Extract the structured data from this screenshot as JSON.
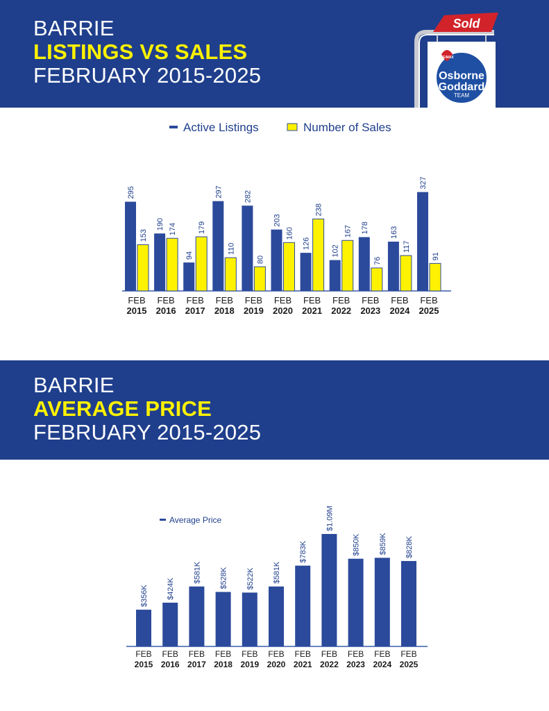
{
  "header1": {
    "line1": "BARRIE",
    "line2": "LISTINGS VS SALES",
    "line3": "FEBRUARY 2015-2025"
  },
  "header2": {
    "line1": "BARRIE",
    "line2": "AVERAGE PRICE",
    "line3": "FEBRUARY 2015-2025"
  },
  "logo": {
    "sold_text": "Sold",
    "remax_text": "RE/MAX",
    "line1": "Osborne",
    "line2": "Goddard",
    "line3": "TEAM"
  },
  "colors": {
    "navy": "#1f3f8c",
    "bar_blue": "#2b4a9b",
    "bar_yellow": "#fff200",
    "highlight": "#fff200",
    "sold_red": "#d2232a"
  },
  "chart_data": [
    {
      "type": "bar",
      "categories": [
        "FEB 2015",
        "FEB 2016",
        "FEB 2017",
        "FEB 2018",
        "FEB 2019",
        "FEB 2020",
        "FEB 2021",
        "FEB 2022",
        "FEB 2023",
        "FEB 2024",
        "FEB 2025"
      ],
      "tick_top": [
        "FEB",
        "FEB",
        "FEB",
        "FEB",
        "FEB",
        "FEB",
        "FEB",
        "FEB",
        "FEB",
        "FEB",
        "FEB"
      ],
      "tick_bottom": [
        "2015",
        "2016",
        "2017",
        "2018",
        "2019",
        "2020",
        "2021",
        "2022",
        "2023",
        "2024",
        "2025"
      ],
      "series": [
        {
          "name": "Active Listings",
          "color": "#2b4a9b",
          "values": [
            295,
            190,
            94,
            297,
            282,
            203,
            126,
            102,
            178,
            163,
            327
          ],
          "labels": [
            "295",
            "190",
            "94",
            "297",
            "282",
            "203",
            "126",
            "102",
            "178",
            "163",
            "327"
          ]
        },
        {
          "name": "Number of Sales",
          "color": "#fff200",
          "values": [
            153,
            174,
            179,
            110,
            80,
            160,
            238,
            167,
            76,
            117,
            91
          ],
          "labels": [
            "153",
            "174",
            "179",
            "110",
            "80",
            "160",
            "238",
            "167",
            "76",
            "117",
            "91"
          ]
        }
      ],
      "ylim": [
        0,
        330
      ],
      "legend_position": "top-center",
      "grid": false
    },
    {
      "type": "bar",
      "categories": [
        "FEB 2015",
        "FEB 2016",
        "FEB 2017",
        "FEB 2018",
        "FEB 2019",
        "FEB 2020",
        "FEB 2021",
        "FEB 2022",
        "FEB 2023",
        "FEB 2024",
        "FEB 2025"
      ],
      "tick_top": [
        "FEB",
        "FEB",
        "FEB",
        "FEB",
        "FEB",
        "FEB",
        "FEB",
        "FEB",
        "FEB",
        "FEB",
        "FEB"
      ],
      "tick_bottom": [
        "2015",
        "2016",
        "2017",
        "2018",
        "2019",
        "2020",
        "2021",
        "2022",
        "2023",
        "2024",
        "2025"
      ],
      "series": [
        {
          "name": "Average Price",
          "color": "#2b4a9b",
          "values": [
            356,
            424,
            581,
            528,
            522,
            581,
            783,
            1090,
            850,
            859,
            828
          ],
          "labels": [
            "$356K",
            "$424K",
            "$581K",
            "$528K",
            "$522K",
            "$581K",
            "$783K",
            "$1.09M",
            "$850K",
            "$859K",
            "$828K"
          ]
        }
      ],
      "units": "thousands of dollars",
      "ylim": [
        0,
        1100
      ],
      "legend_position": "top-left",
      "grid": false
    }
  ]
}
